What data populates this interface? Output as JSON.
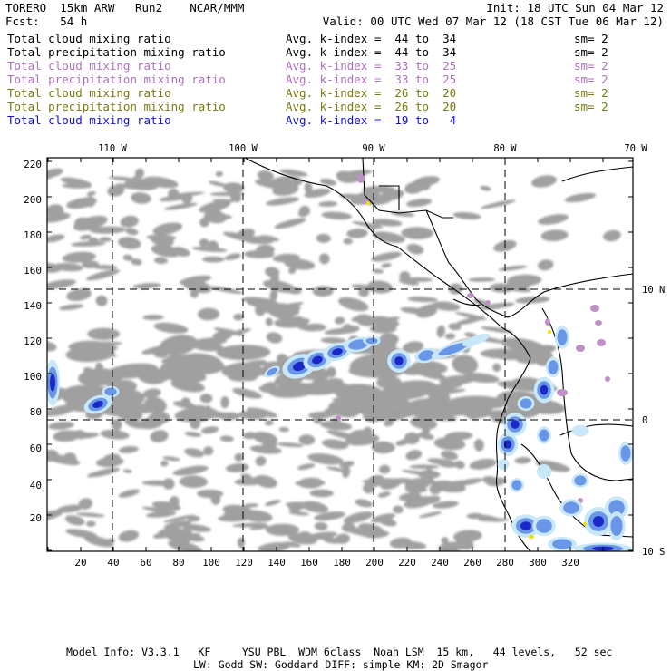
{
  "header": {
    "model": "TORERO  15km ARW   Run2    NCAR/MMM",
    "init": "Init: 18 UTC Sun 04 Mar 12",
    "fcst": "Fcst:   54 h",
    "valid": "Valid: 00 UTC Wed 07 Mar 12 (18 CST Tue 06 Mar 12)"
  },
  "legend": [
    {
      "field": "Total cloud mixing ratio",
      "kindex": "Avg. k-index =  44 to  34",
      "sm": "sm= 2",
      "color": "#000000"
    },
    {
      "field": "Total precipitation mixing ratio",
      "kindex": "Avg. k-index =  44 to  34",
      "sm": "sm= 2",
      "color": "#000000"
    },
    {
      "field": "Total cloud mixing ratio",
      "kindex": "Avg. k-index =  33 to  25",
      "sm": "sm= 2",
      "color": "#b070c0"
    },
    {
      "field": "Total precipitation mixing ratio",
      "kindex": "Avg. k-index =  33 to  25",
      "sm": "sm= 2",
      "color": "#b070c0"
    },
    {
      "field": "Total cloud mixing ratio",
      "kindex": "Avg. k-index =  26 to  20",
      "sm": "sm= 2",
      "color": "#7a7a10"
    },
    {
      "field": "Total precipitation mixing ratio",
      "kindex": "Avg. k-index =  26 to  20",
      "sm": "sm= 2",
      "color": "#7a7a10"
    },
    {
      "field": "Total cloud mixing ratio",
      "kindex": "Avg. k-index =  19 to   4",
      "sm": "",
      "color": "#1414d0"
    }
  ],
  "map": {
    "x_ticks": [
      "20",
      "40",
      "60",
      "80",
      "100",
      "120",
      "140",
      "160",
      "180",
      "200",
      "220",
      "240",
      "260",
      "280",
      "300",
      "320"
    ],
    "y_ticks": [
      "20",
      "40",
      "60",
      "80",
      "100",
      "120",
      "140",
      "160",
      "180",
      "200",
      "220"
    ],
    "lon_labels": [
      "110 W",
      "100 W",
      "90 W",
      "80 W",
      "70 W"
    ],
    "lat_labels": [
      "10 N",
      "0",
      "10 S"
    ],
    "colors": {
      "cloud_gray": "#a0a0a0",
      "purple": "#c090c8",
      "olive": "#8a8a20",
      "yellow": "#f0e000",
      "blue_light": "#c8e8fa",
      "blue_mid": "#6a96e8",
      "blue_dark": "#1a28c8"
    }
  },
  "footer": {
    "line1": "Model Info: V3.3.1   KF     YSU PBL  WDM 6class  Noah LSM  15 km,   44 levels,   52 sec",
    "line2": "LW: Godd SW: Goddard DIFF: simple KM: 2D Smagor"
  }
}
